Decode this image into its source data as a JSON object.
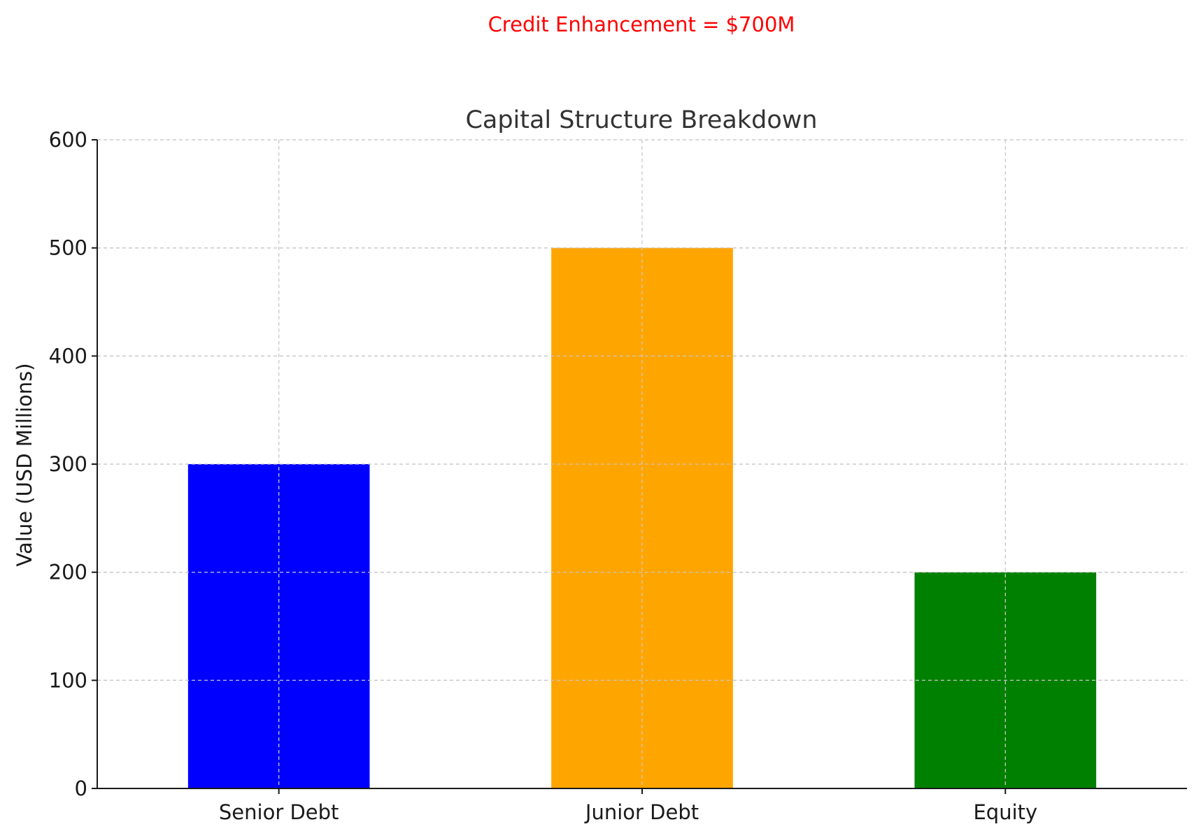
{
  "chart_data": {
    "type": "bar",
    "title": "Capital Structure Breakdown",
    "annotation": "Credit Enhancement = $700M",
    "xlabel": "",
    "ylabel": "Value (USD Millions)",
    "categories": [
      "Senior Debt",
      "Junior Debt",
      "Equity"
    ],
    "values": [
      300,
      500,
      200
    ],
    "bar_colors": [
      "#0000ff",
      "#ffa500",
      "#008000"
    ],
    "ylim": [
      0,
      600
    ],
    "yticks": [
      0,
      100,
      200,
      300,
      400,
      500,
      600
    ],
    "grid": true,
    "legend": "none"
  },
  "colors": {
    "annotation": "#ff0000",
    "axis": "#1a1a1a",
    "grid": "#c8c8c8",
    "title": "#333333"
  }
}
